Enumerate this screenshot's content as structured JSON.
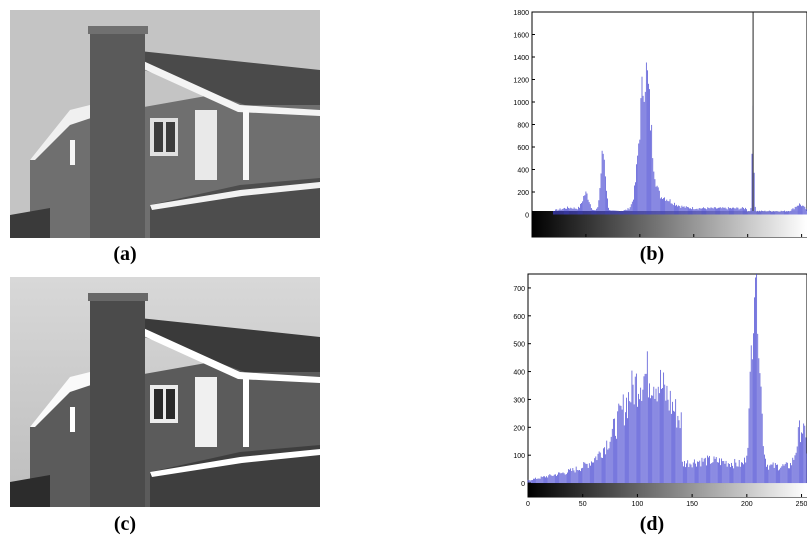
{
  "captions": {
    "a": "(a)",
    "b": "(b)",
    "c": "(c)",
    "d": "(d)"
  },
  "images": {
    "a": {
      "description_icon": "house-photo-icon"
    },
    "c": {
      "description_icon": "house-photo-icon"
    }
  },
  "colors": {
    "bar": "#4040d0",
    "frame": "#000000",
    "panel_bg": "#ffffff"
  },
  "chart_data": [
    {
      "id": "hist-b",
      "type": "bar",
      "title": "",
      "xlabel": "",
      "ylabel": "",
      "xlim": [
        0,
        255
      ],
      "ylim": [
        -200,
        1800
      ],
      "yticks": [
        0,
        200,
        400,
        600,
        800,
        1000,
        1200,
        1400,
        1600,
        1800
      ],
      "xticks": [
        0,
        50,
        100,
        150,
        200,
        250
      ],
      "grid": false,
      "colorbar": "grayscale",
      "marker_line_x": 205,
      "peaks": [
        {
          "x": 30,
          "y": 80
        },
        {
          "x": 50,
          "y": 180
        },
        {
          "x": 66,
          "y": 540
        },
        {
          "x": 105,
          "y": 1200
        },
        {
          "x": 205,
          "y": 950
        },
        {
          "x": 248,
          "y": 80
        }
      ]
    },
    {
      "id": "hist-d",
      "type": "bar",
      "title": "",
      "xlabel": "",
      "ylabel": "",
      "xlim": [
        0,
        255
      ],
      "ylim": [
        -50,
        750
      ],
      "yticks": [
        0,
        100,
        200,
        300,
        400,
        500,
        600,
        700
      ],
      "xticks": [
        0,
        50,
        100,
        150,
        200,
        250
      ],
      "grid": false,
      "colorbar": "grayscale",
      "peaks": [
        {
          "x": 10,
          "y": 20
        },
        {
          "x": 50,
          "y": 90
        },
        {
          "x": 108,
          "y": 370
        },
        {
          "x": 160,
          "y": 60
        },
        {
          "x": 208,
          "y": 750
        },
        {
          "x": 250,
          "y": 150
        }
      ]
    }
  ]
}
